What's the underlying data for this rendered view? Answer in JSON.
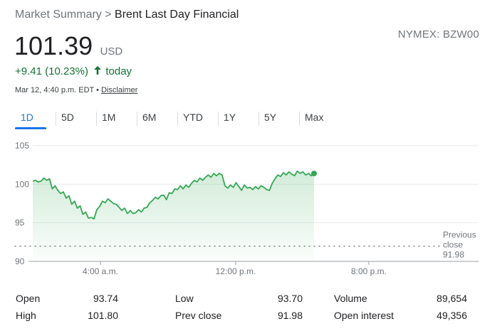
{
  "breadcrumb": {
    "parent": "Market Summary",
    "separator": ">",
    "current": "Brent Last Day Financial"
  },
  "ticker": "NYMEX: BZW00",
  "quote": {
    "price": "101.39",
    "currency": "USD",
    "change": "+9.41 (10.23%)",
    "arrow": "🡑",
    "period": "today",
    "timestamp": "Mar 12, 4:40 p.m. EDT",
    "bullet": "•",
    "disclaimer": "Disclaimer"
  },
  "tabs": [
    {
      "label": "1D",
      "active": true
    },
    {
      "label": "5D",
      "active": false
    },
    {
      "label": "1M",
      "active": false
    },
    {
      "label": "6M",
      "active": false
    },
    {
      "label": "YTD",
      "active": false
    },
    {
      "label": "1Y",
      "active": false
    },
    {
      "label": "5Y",
      "active": false
    },
    {
      "label": "Max",
      "active": false
    }
  ],
  "colors": {
    "up": "#137333",
    "line": "#34a853",
    "accent": "#1a73e8",
    "muted": "#70757a"
  },
  "chart_data": {
    "type": "area",
    "y_ticks": [
      105,
      100,
      95,
      90
    ],
    "ylim": [
      90,
      105
    ],
    "x_ticks": [
      "4:00 a.m.",
      "12:00 p.m.",
      "8:00 p.m."
    ],
    "previous_close": {
      "label_lines": [
        "Previous",
        "close",
        "91.98"
      ],
      "value": 91.98
    },
    "series": [
      {
        "values": [
          100.4,
          100.5,
          100.3,
          100.4,
          100.8,
          100.5,
          100.7,
          99.4,
          99.8,
          99.2,
          98.8,
          99.0,
          98.2,
          98.5,
          97.4,
          97.8,
          96.9,
          97.2,
          96.1,
          96.4,
          95.6,
          95.7,
          95.5,
          96.7,
          97.1,
          97.8,
          97.6,
          98.1,
          97.8,
          97.5,
          97.4,
          97.0,
          96.6,
          96.9,
          96.2,
          96.6,
          96.2,
          96.3,
          96.7,
          96.4,
          96.9,
          97.0,
          97.6,
          97.9,
          98.3,
          98.1,
          98.5,
          98.6,
          98.0,
          98.9,
          98.8,
          99.4,
          99.3,
          99.8,
          99.4,
          99.9,
          99.6,
          100.1,
          100.5,
          100.3,
          100.8,
          100.5,
          100.9,
          101.2,
          100.9,
          101.4,
          101.1,
          101.4,
          101.2,
          99.8,
          99.5,
          99.9,
          99.6,
          100.2,
          99.7,
          99.2,
          99.9,
          99.5,
          99.6,
          99.3,
          99.7,
          99.4,
          99.8,
          99.6,
          99.3,
          99.2,
          100.1,
          100.7,
          101.2,
          101.0,
          101.5,
          101.2,
          101.6,
          101.3,
          101.1,
          101.7,
          101.4,
          101.6,
          101.2,
          101.4,
          101.1,
          101.39
        ]
      }
    ],
    "last_point": 101.39
  },
  "stats": [
    {
      "label": "Open",
      "value": "93.74"
    },
    {
      "label": "Low",
      "value": "93.70"
    },
    {
      "label": "Volume",
      "value": "89,654"
    },
    {
      "label": "High",
      "value": "101.80"
    },
    {
      "label": "Prev close",
      "value": "91.98"
    },
    {
      "label": "Open interest",
      "value": "49,356"
    }
  ]
}
